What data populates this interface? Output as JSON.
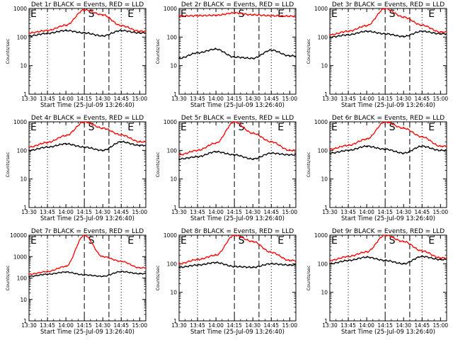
{
  "chart_data": [
    {
      "type": "line",
      "title": "Det 1r BLACK = Events, RED = LLD",
      "xlabel": "Start Time (25-Jul-09 13:26:40)",
      "ylabel": "Counts/sec",
      "yscale": "log",
      "ylim": [
        1,
        1000
      ],
      "xlim": [
        "13:30",
        "15:05"
      ],
      "yticks": [
        "1",
        "10",
        "100",
        "1000"
      ],
      "xticks": [
        "13:30",
        "13:45",
        "14:00",
        "14:15",
        "14:30",
        "14:45",
        "15:00"
      ],
      "markers": [
        "E",
        "S",
        "E"
      ],
      "series": [
        {
          "name": "BLACK = Events",
          "color": "#000000",
          "x": [
            "13:30",
            "13:45",
            "14:00",
            "14:15",
            "14:30",
            "14:45",
            "15:00"
          ],
          "values": [
            110,
            135,
            170,
            140,
            110,
            170,
            140
          ]
        },
        {
          "name": "RED = LLD",
          "color": "#ff0000",
          "x": [
            "13:30",
            "13:45",
            "14:00",
            "14:15",
            "14:30",
            "14:45",
            "15:00"
          ],
          "values": [
            140,
            170,
            260,
            900,
            600,
            250,
            160
          ]
        }
      ]
    },
    {
      "type": "line",
      "title": "Det 2r BLACK = Events, RED = LLD",
      "xlabel": "Start Time (25-Jul-09 13:26:40)",
      "ylabel": "Counts/sec",
      "yscale": "log",
      "ylim": [
        1,
        1000
      ],
      "xlim": [
        "13:30",
        "15:05"
      ],
      "yticks": [
        "1",
        "10",
        "100",
        "1000"
      ],
      "xticks": [
        "13:30",
        "13:45",
        "14:00",
        "14:15",
        "14:30",
        "14:45",
        "15:00"
      ],
      "markers": [
        "E",
        "S",
        "E"
      ],
      "series": [
        {
          "name": "BLACK = Events",
          "color": "#000000",
          "x": [
            "13:30",
            "13:45",
            "14:00",
            "14:15",
            "14:30",
            "14:45",
            "15:00"
          ],
          "values": [
            18,
            28,
            38,
            20,
            18,
            35,
            22
          ]
        },
        {
          "name": "RED = LLD",
          "color": "#ff0000",
          "x": [
            "13:30",
            "13:45",
            "14:00",
            "14:15",
            "14:30",
            "14:45",
            "15:00"
          ],
          "values": [
            550,
            560,
            580,
            700,
            600,
            560,
            540
          ]
        }
      ]
    },
    {
      "type": "line",
      "title": "Det 3r BLACK = Events, RED = LLD",
      "xlabel": "Start Time (25-Jul-09 13:26:40)",
      "ylabel": "Counts/sec",
      "yscale": "log",
      "ylim": [
        1,
        1000
      ],
      "xlim": [
        "13:30",
        "15:05"
      ],
      "yticks": [
        "1",
        "10",
        "100",
        "1000"
      ],
      "xticks": [
        "13:30",
        "13:45",
        "14:00",
        "14:15",
        "14:30",
        "14:45",
        "15:00"
      ],
      "markers": [
        "E",
        "S",
        "E"
      ],
      "series": [
        {
          "name": "BLACK = Events",
          "color": "#000000",
          "x": [
            "13:30",
            "13:45",
            "14:00",
            "14:15",
            "14:30",
            "14:45",
            "15:00"
          ],
          "values": [
            100,
            120,
            160,
            130,
            105,
            160,
            130
          ]
        },
        {
          "name": "RED = LLD",
          "color": "#ff0000",
          "x": [
            "13:30",
            "13:45",
            "14:00",
            "14:15",
            "14:30",
            "14:45",
            "15:00"
          ],
          "values": [
            120,
            160,
            250,
            1000,
            500,
            260,
            150
          ]
        }
      ]
    },
    {
      "type": "line",
      "title": "Det 4r BLACK = Events, RED = LLD",
      "xlabel": "Start Time (25-Jul-09 13:26:40)",
      "ylabel": "Counts/sec",
      "yscale": "log",
      "ylim": [
        1,
        1000
      ],
      "xlim": [
        "13:30",
        "15:05"
      ],
      "yticks": [
        "1",
        "10",
        "100",
        "1000"
      ],
      "xticks": [
        "13:30",
        "13:45",
        "14:00",
        "14:15",
        "14:30",
        "14:45",
        "15:00"
      ],
      "markers": [
        "E",
        "S",
        "E"
      ],
      "series": [
        {
          "name": "BLACK = Events",
          "color": "#000000",
          "x": [
            "13:30",
            "13:45",
            "14:00",
            "14:15",
            "14:30",
            "14:45",
            "15:00"
          ],
          "values": [
            100,
            130,
            170,
            130,
            100,
            200,
            150
          ]
        },
        {
          "name": "RED = LLD",
          "color": "#ff0000",
          "x": [
            "13:30",
            "13:45",
            "14:00",
            "14:15",
            "14:30",
            "14:45",
            "15:00"
          ],
          "values": [
            130,
            190,
            330,
            1000,
            600,
            350,
            200
          ]
        }
      ]
    },
    {
      "type": "line",
      "title": "Det 5r BLACK = Events, RED = LLD",
      "xlabel": "Start Time (25-Jul-09 13:26:40)",
      "ylabel": "Counts/sec",
      "yscale": "log",
      "ylim": [
        1,
        1000
      ],
      "xlim": [
        "13:30",
        "15:05"
      ],
      "yticks": [
        "1",
        "10",
        "100",
        "1000"
      ],
      "xticks": [
        "13:30",
        "13:45",
        "14:00",
        "14:15",
        "14:30",
        "14:45",
        "15:00"
      ],
      "markers": [
        "E",
        "S",
        "E"
      ],
      "series": [
        {
          "name": "BLACK = Events",
          "color": "#000000",
          "x": [
            "13:30",
            "13:45",
            "14:00",
            "14:15",
            "14:30",
            "14:45",
            "15:00"
          ],
          "values": [
            50,
            60,
            90,
            70,
            50,
            80,
            70
          ]
        },
        {
          "name": "RED = LLD",
          "color": "#ff0000",
          "x": [
            "13:30",
            "13:45",
            "14:00",
            "14:15",
            "14:30",
            "14:45",
            "15:00"
          ],
          "values": [
            70,
            100,
            180,
            1000,
            400,
            200,
            100
          ]
        }
      ]
    },
    {
      "type": "line",
      "title": "Det 6r BLACK = Events, RED = LLD",
      "xlabel": "Start Time (25-Jul-09 13:26:40)",
      "ylabel": "Counts/sec",
      "yscale": "log",
      "ylim": [
        1,
        1000
      ],
      "xlim": [
        "13:30",
        "15:05"
      ],
      "yticks": [
        "1",
        "10",
        "100",
        "1000"
      ],
      "xticks": [
        "13:30",
        "13:45",
        "14:00",
        "14:15",
        "14:30",
        "14:45",
        "15:00"
      ],
      "markers": [
        "E",
        "S",
        "E"
      ],
      "series": [
        {
          "name": "BLACK = Events",
          "color": "#000000",
          "x": [
            "13:30",
            "13:45",
            "14:00",
            "14:15",
            "14:30",
            "14:45",
            "15:00"
          ],
          "values": [
            80,
            100,
            140,
            110,
            80,
            140,
            100
          ]
        },
        {
          "name": "RED = LLD",
          "color": "#ff0000",
          "x": [
            "13:30",
            "13:45",
            "14:00",
            "14:15",
            "14:30",
            "14:45",
            "15:00"
          ],
          "values": [
            110,
            150,
            250,
            1000,
            600,
            300,
            140
          ]
        }
      ]
    },
    {
      "type": "line",
      "title": "Det 7r BLACK = Events, RED = LLD",
      "xlabel": "Start Time (25-Jul-09 13:26:40)",
      "ylabel": "Counts/sec",
      "yscale": "log",
      "ylim": [
        1,
        10000
      ],
      "xlim": [
        "13:30",
        "15:05"
      ],
      "yticks": [
        "1",
        "10",
        "100",
        "1000",
        "10000"
      ],
      "xticks": [
        "13:30",
        "13:45",
        "14:00",
        "14:15",
        "14:30",
        "14:45",
        "15:00"
      ],
      "markers": [
        "E",
        "S",
        "E"
      ],
      "series": [
        {
          "name": "BLACK = Events",
          "color": "#000000",
          "x": [
            "13:30",
            "13:45",
            "14:00",
            "14:15",
            "14:30",
            "14:45",
            "15:00"
          ],
          "values": [
            120,
            150,
            190,
            140,
            120,
            200,
            160
          ]
        },
        {
          "name": "RED = LLD",
          "color": "#ff0000",
          "x": [
            "13:30",
            "13:45",
            "14:00",
            "14:15",
            "14:30",
            "14:45",
            "15:00"
          ],
          "values": [
            150,
            200,
            350,
            10000,
            1000,
            600,
            300
          ]
        }
      ]
    },
    {
      "type": "line",
      "title": "Det 8r BLACK = Events, RED = LLD",
      "xlabel": "Start Time (25-Jul-09 13:26:40)",
      "ylabel": "Counts/sec",
      "yscale": "log",
      "ylim": [
        1,
        1000
      ],
      "xlim": [
        "13:30",
        "15:05"
      ],
      "yticks": [
        "1",
        "10",
        "100",
        "1000"
      ],
      "xticks": [
        "13:30",
        "13:45",
        "14:00",
        "14:15",
        "14:30",
        "14:45",
        "15:00"
      ],
      "markers": [
        "E",
        "S",
        "E"
      ],
      "series": [
        {
          "name": "BLACK = Events",
          "color": "#000000",
          "x": [
            "13:30",
            "13:45",
            "14:00",
            "14:15",
            "14:30",
            "14:45",
            "15:00"
          ],
          "values": [
            75,
            90,
            110,
            80,
            75,
            100,
            90
          ]
        },
        {
          "name": "RED = LLD",
          "color": "#ff0000",
          "x": [
            "13:30",
            "13:45",
            "14:00",
            "14:15",
            "14:30",
            "14:45",
            "15:00"
          ],
          "values": [
            100,
            140,
            200,
            1000,
            600,
            250,
            130
          ]
        }
      ]
    },
    {
      "type": "line",
      "title": "Det 9r BLACK = Events, RED = LLD",
      "xlabel": "Start Time (25-Jul-09 13:26:40)",
      "ylabel": "Counts/sec",
      "yscale": "log",
      "ylim": [
        1,
        1000
      ],
      "xlim": [
        "13:30",
        "15:05"
      ],
      "yticks": [
        "1",
        "10",
        "100",
        "1000"
      ],
      "xticks": [
        "13:30",
        "13:45",
        "14:00",
        "14:15",
        "14:30",
        "14:45",
        "15:00"
      ],
      "markers": [
        "E",
        "S",
        "E"
      ],
      "series": [
        {
          "name": "BLACK = Events",
          "color": "#000000",
          "x": [
            "13:30",
            "13:45",
            "14:00",
            "14:15",
            "14:30",
            "14:45",
            "15:00"
          ],
          "values": [
            100,
            130,
            170,
            130,
            100,
            180,
            140
          ]
        },
        {
          "name": "RED = LLD",
          "color": "#ff0000",
          "x": [
            "13:30",
            "13:45",
            "14:00",
            "14:15",
            "14:30",
            "14:45",
            "15:00"
          ],
          "values": [
            130,
            180,
            260,
            1000,
            600,
            280,
            160
          ]
        }
      ]
    }
  ]
}
